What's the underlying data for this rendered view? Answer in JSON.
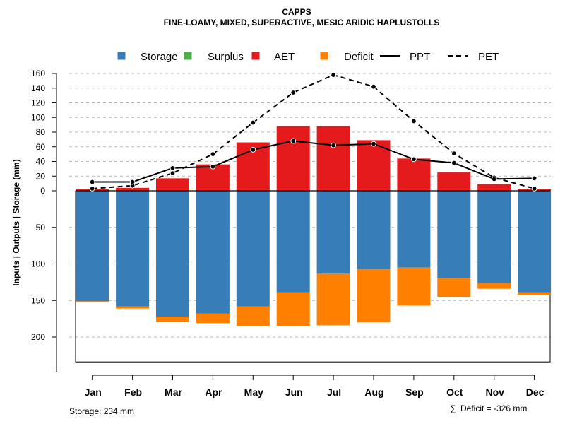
{
  "title": "CAPPS",
  "subtitle": "FINE-LOAMY, MIXED, SUPERACTIVE, MESIC ARIDIC HAPLUSTOLLS",
  "legend": [
    {
      "key": "storage",
      "label": "Storage",
      "color": "#377EB8",
      "kind": "box"
    },
    {
      "key": "surplus",
      "label": "Surplus",
      "color": "#4DAF4A",
      "kind": "box"
    },
    {
      "key": "aet",
      "label": "AET",
      "color": "#E41A1C",
      "kind": "box"
    },
    {
      "key": "deficit",
      "label": "Deficit",
      "color": "#FF7F00",
      "kind": "box"
    },
    {
      "key": "ppt",
      "label": "PPT",
      "color": "#000000",
      "kind": "line-solid"
    },
    {
      "key": "pet",
      "label": "PET",
      "color": "#000000",
      "kind": "line-dashed"
    }
  ],
  "ylabel": "Inputs | Outputs | Storage    (mm)",
  "footer": {
    "storage": "Storage: 234 mm",
    "deficit_symbol": "∑",
    "deficit": "Deficit = -326 mm"
  },
  "chart_data": {
    "type": "bar",
    "categories": [
      "Jan",
      "Feb",
      "Mar",
      "Apr",
      "May",
      "Jun",
      "Jul",
      "Aug",
      "Sep",
      "Oct",
      "Nov",
      "Dec"
    ],
    "upper_ticks": [
      "0",
      "20",
      "40",
      "60",
      "80",
      "100",
      "120",
      "140",
      "160"
    ],
    "lower_ticks": [
      "50",
      "100",
      "150",
      "200"
    ],
    "upper_ylim": [
      0,
      160
    ],
    "lower_ylim": [
      0,
      234
    ],
    "storage_capacity": 234,
    "series": [
      {
        "name": "AET",
        "values": [
          2,
          4,
          17,
          36,
          66,
          88,
          88,
          69,
          44,
          25,
          9,
          2
        ]
      },
      {
        "name": "PPT",
        "values": [
          12,
          12,
          31,
          33,
          56,
          68,
          62,
          64,
          43,
          38,
          16,
          17
        ]
      },
      {
        "name": "PET",
        "values": [
          3,
          7,
          24,
          50,
          93,
          134,
          158,
          142,
          95,
          51,
          18,
          3
        ]
      },
      {
        "name": "Storage",
        "values": [
          151,
          158,
          172,
          168,
          158,
          139,
          113,
          107,
          105,
          119,
          126,
          139
        ]
      },
      {
        "name": "Deficit",
        "values": [
          1,
          3,
          7,
          13,
          27,
          46,
          71,
          73,
          52,
          26,
          8,
          3
        ]
      },
      {
        "name": "Surplus",
        "values": [
          0,
          0,
          0,
          0,
          0,
          0,
          0,
          0,
          0,
          0,
          0,
          0
        ]
      }
    ]
  }
}
